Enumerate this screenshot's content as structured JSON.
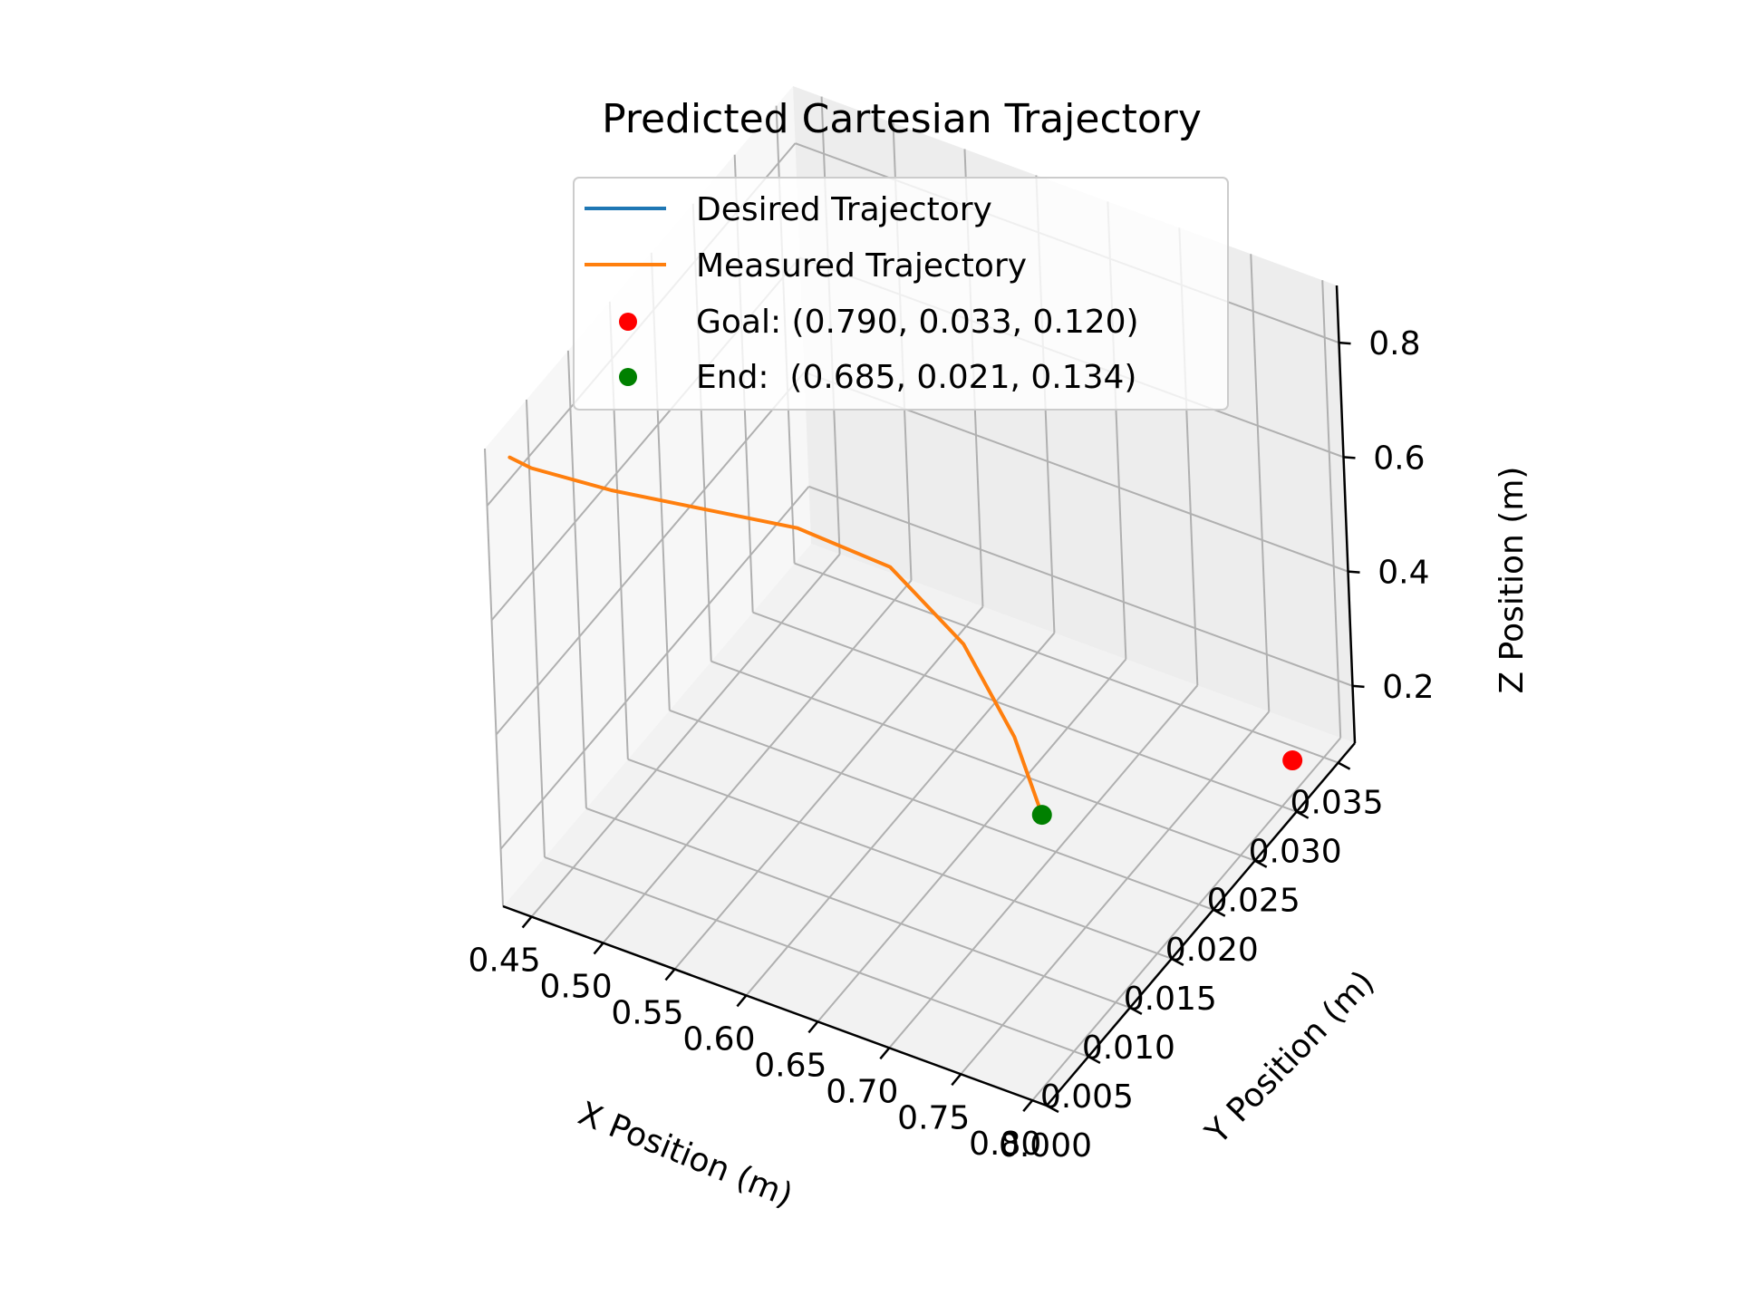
{
  "chart_data": {
    "type": "line",
    "projection": "3d",
    "title": "Predicted Cartesian Trajectory",
    "xlabel": "X Position (m)",
    "ylabel": "Y Position (m)",
    "zlabel": "Z Position (m)",
    "xlim": [
      0.43,
      0.81
    ],
    "ylim": [
      0.0,
      0.037
    ],
    "zlim": [
      0.1,
      0.9
    ],
    "xticks": [
      "0.45",
      "0.50",
      "0.55",
      "0.60",
      "0.65",
      "0.70",
      "0.75",
      "0.80"
    ],
    "yticks": [
      "0.000",
      "0.005",
      "0.010",
      "0.015",
      "0.020",
      "0.025",
      "0.030",
      "0.035"
    ],
    "zticks": [
      "0.2",
      "0.4",
      "0.6",
      "0.8"
    ],
    "grid": true,
    "legend_position": "top-center",
    "series": [
      {
        "name": "Desired Trajectory",
        "color": "#1f77b4",
        "x": [
          0.435,
          0.45,
          0.5,
          0.55,
          0.6,
          0.64,
          0.665,
          0.68,
          0.685
        ],
        "y": [
          0.002,
          0.002,
          0.003,
          0.005,
          0.008,
          0.012,
          0.016,
          0.019,
          0.021
        ],
        "z": [
          0.855,
          0.85,
          0.84,
          0.82,
          0.78,
          0.68,
          0.5,
          0.3,
          0.134
        ]
      },
      {
        "name": "Measured Trajectory",
        "color": "#ff7f0e",
        "x": [
          0.435,
          0.45,
          0.5,
          0.55,
          0.6,
          0.64,
          0.665,
          0.68,
          0.685
        ],
        "y": [
          0.002,
          0.002,
          0.003,
          0.005,
          0.008,
          0.012,
          0.016,
          0.019,
          0.021
        ],
        "z": [
          0.855,
          0.85,
          0.84,
          0.82,
          0.78,
          0.68,
          0.5,
          0.3,
          0.134
        ]
      }
    ],
    "points": [
      {
        "name": "Goal: (0.790, 0.033, 0.120)",
        "color": "#ff0000",
        "x": 0.79,
        "y": 0.033,
        "z": 0.12
      },
      {
        "name": "End:  (0.685, 0.021, 0.134)",
        "color": "#008000",
        "x": 0.685,
        "y": 0.021,
        "z": 0.134
      }
    ]
  }
}
